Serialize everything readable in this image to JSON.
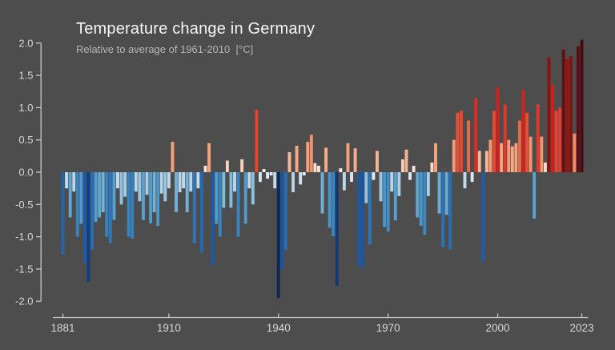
{
  "header": {
    "title": "Temperature change in Germany",
    "subtitle": "Relative to average of 1961-2010  [°C]"
  },
  "colors": {
    "background": "#4d4d4d",
    "title_text": "#f5f5f5",
    "subtitle_text": "#b5b5b5",
    "axis_line": "#c9c9c9",
    "tick_label": "#d6d6d6"
  },
  "chart_data": {
    "type": "bar",
    "title": "Temperature change in Germany",
    "subtitle": "Relative to average of 1961-2010  [°C]",
    "xlabel": "",
    "ylabel": "",
    "unit": "°C",
    "baseline": 0.0,
    "ylim": [
      -2.0,
      2.0
    ],
    "yticks": [
      "2.0",
      "1.5",
      "1.0",
      "0.5",
      "0.0",
      "-0.5",
      "-1.0",
      "-1.5",
      "-2.0"
    ],
    "ytick_values": [
      2.0,
      1.5,
      1.0,
      0.5,
      0.0,
      -0.5,
      -1.0,
      -1.5,
      -2.0
    ],
    "xticks": [
      1881,
      1910,
      1940,
      1970,
      2000,
      2023
    ],
    "xtick_labels": [
      "1881",
      "1910",
      "1940",
      "1970",
      "2000",
      "2023"
    ],
    "grid": false,
    "legend": false,
    "year_start": 1881,
    "year_end": 2023,
    "years": [
      1881,
      1882,
      1883,
      1884,
      1885,
      1886,
      1887,
      1888,
      1889,
      1890,
      1891,
      1892,
      1893,
      1894,
      1895,
      1896,
      1897,
      1898,
      1899,
      1900,
      1901,
      1902,
      1903,
      1904,
      1905,
      1906,
      1907,
      1908,
      1909,
      1910,
      1911,
      1912,
      1913,
      1914,
      1915,
      1916,
      1917,
      1918,
      1919,
      1920,
      1921,
      1922,
      1923,
      1924,
      1925,
      1926,
      1927,
      1928,
      1929,
      1930,
      1931,
      1932,
      1933,
      1934,
      1935,
      1936,
      1937,
      1938,
      1939,
      1940,
      1941,
      1942,
      1943,
      1944,
      1945,
      1946,
      1947,
      1948,
      1949,
      1950,
      1951,
      1952,
      1953,
      1954,
      1955,
      1956,
      1957,
      1958,
      1959,
      1960,
      1961,
      1962,
      1963,
      1964,
      1965,
      1966,
      1967,
      1968,
      1969,
      1970,
      1971,
      1972,
      1973,
      1974,
      1975,
      1976,
      1977,
      1978,
      1979,
      1980,
      1981,
      1982,
      1983,
      1984,
      1985,
      1986,
      1987,
      1988,
      1989,
      1990,
      1991,
      1992,
      1993,
      1994,
      1995,
      1996,
      1997,
      1998,
      1999,
      2000,
      2001,
      2002,
      2003,
      2004,
      2005,
      2006,
      2007,
      2008,
      2009,
      2010,
      2011,
      2012,
      2013,
      2014,
      2015,
      2016,
      2017,
      2018,
      2019,
      2020,
      2021,
      2022,
      2023
    ],
    "values": [
      -1.28,
      -0.25,
      -0.7,
      -0.3,
      -1.0,
      -0.8,
      -1.4,
      -1.7,
      -1.2,
      -0.77,
      -0.7,
      -0.62,
      -1.0,
      -1.1,
      -0.74,
      -0.25,
      -0.5,
      -0.38,
      -1.0,
      -1.03,
      -0.3,
      -0.45,
      -0.74,
      -0.35,
      -0.79,
      -0.62,
      -0.83,
      -0.33,
      -0.45,
      -0.25,
      0.47,
      -0.62,
      -0.31,
      -0.25,
      -0.62,
      -0.3,
      -1.1,
      -0.25,
      -1.25,
      0.1,
      0.45,
      -1.43,
      -0.8,
      -1.0,
      -0.55,
      0.18,
      -0.55,
      -0.3,
      -1.0,
      0.2,
      -0.8,
      -0.25,
      -0.5,
      0.97,
      -0.15,
      0.05,
      -0.1,
      -0.05,
      -0.25,
      -1.95,
      -1.5,
      -1.2,
      0.31,
      -0.31,
      0.41,
      -0.19,
      -0.05,
      0.47,
      0.58,
      0.14,
      0.1,
      -0.64,
      0.38,
      -0.86,
      -0.99,
      -1.76,
      0.06,
      -0.28,
      0.45,
      -0.15,
      0.37,
      -1.45,
      -1.49,
      -0.48,
      -1.12,
      -0.12,
      0.33,
      -0.45,
      -0.85,
      -0.92,
      -0.3,
      -0.75,
      -0.37,
      0.2,
      0.35,
      -0.12,
      0.1,
      -0.7,
      -0.83,
      -0.97,
      -0.37,
      0.15,
      0.45,
      -0.64,
      -1.16,
      -0.66,
      -1.2,
      0.5,
      0.92,
      0.95,
      -0.25,
      0.8,
      -0.15,
      1.15,
      0.33,
      -1.38,
      0.33,
      0.5,
      0.95,
      1.31,
      0.45,
      1.05,
      0.5,
      0.4,
      0.45,
      0.8,
      1.28,
      0.92,
      0.55,
      -0.72,
      1.05,
      0.55,
      0.15,
      1.78,
      1.35,
      0.95,
      1.0,
      1.9,
      1.75,
      1.8,
      0.6,
      1.95,
      2.05
    ],
    "color_scale": [
      [
        -2.05,
        "#0a2752"
      ],
      [
        -1.9,
        "#0d2c5a"
      ],
      [
        -1.7,
        "#123e80"
      ],
      [
        -1.5,
        "#1a55a0"
      ],
      [
        -1.3,
        "#2263ab"
      ],
      [
        -1.1,
        "#2f77b8"
      ],
      [
        -0.9,
        "#4390c4"
      ],
      [
        -0.72,
        "#5ba3d0"
      ],
      [
        -0.55,
        "#85bbda"
      ],
      [
        -0.4,
        "#a5cbe4"
      ],
      [
        -0.25,
        "#c3daec"
      ],
      [
        -0.12,
        "#dde8f2"
      ],
      [
        -0.04,
        "#e9eef4"
      ],
      [
        0.04,
        "#f3ece7"
      ],
      [
        0.12,
        "#fbdfd0"
      ],
      [
        0.25,
        "#f9c5a9"
      ],
      [
        0.4,
        "#f6aa83"
      ],
      [
        0.55,
        "#f29571"
      ],
      [
        0.7,
        "#ee7a54"
      ],
      [
        0.85,
        "#ea5f41"
      ],
      [
        1.0,
        "#e63c2b"
      ],
      [
        1.2,
        "#da2721"
      ],
      [
        1.35,
        "#cc1f1e"
      ],
      [
        1.6,
        "#a31814"
      ],
      [
        1.78,
        "#8a1410"
      ],
      [
        1.9,
        "#621014"
      ],
      [
        2.05,
        "#460a12"
      ]
    ]
  }
}
